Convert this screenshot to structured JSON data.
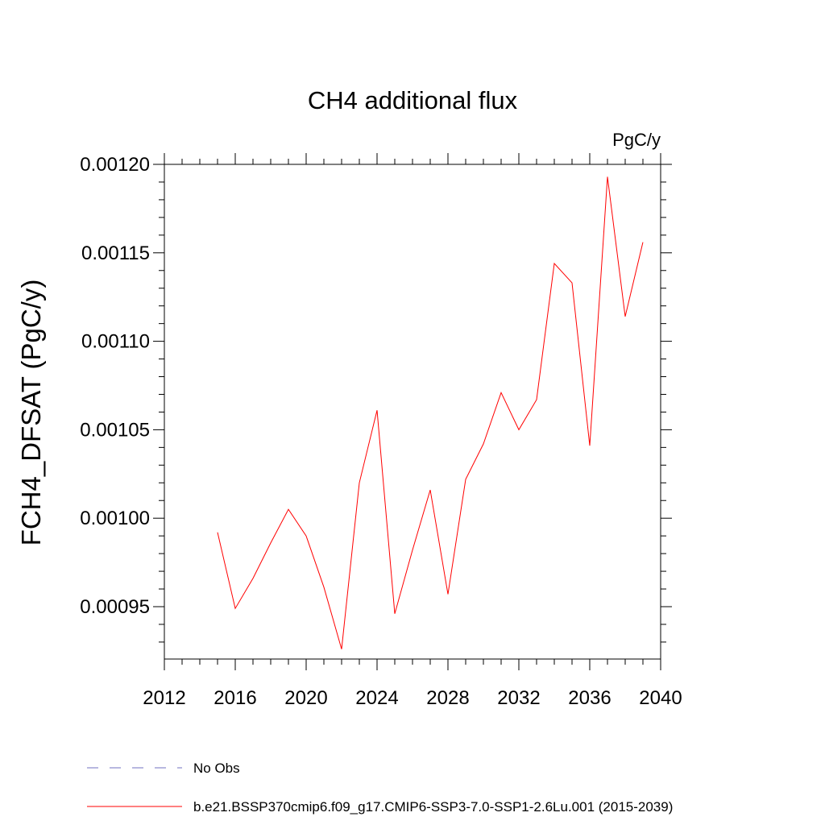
{
  "chart_data": {
    "type": "line",
    "title": "CH4 additional flux",
    "units": "PgC/y",
    "xlabel": "",
    "ylabel": "FCH4_DFSAT  (PgC/y)",
    "xlim": [
      2012,
      2040
    ],
    "ylim": [
      0.0009204,
      0.0012
    ],
    "x_ticks": [
      2012,
      2016,
      2020,
      2024,
      2028,
      2032,
      2036,
      2040
    ],
    "x_tick_labels": [
      "2012",
      "2016",
      "2020",
      "2024",
      "2028",
      "2032",
      "2036",
      "2040"
    ],
    "y_ticks": [
      0.00095,
      0.001,
      0.00105,
      0.0011,
      0.00115,
      0.0012
    ],
    "y_tick_labels": [
      "0.00095",
      "0.00100",
      "0.00105",
      "0.00110",
      "0.00115",
      "0.00120"
    ],
    "grid": false,
    "legend_position": "bottom",
    "series": [
      {
        "name": "b.e21.BSSP370cmip6.f09_g17.CMIP6-SSP3-7.0-SSP1-2.6Lu.001 (2015-2039)",
        "color": "#ff0000",
        "style": "solid",
        "x": [
          2015,
          2016,
          2017,
          2018,
          2019,
          2020,
          2021,
          2022,
          2023,
          2024,
          2025,
          2026,
          2027,
          2028,
          2029,
          2030,
          2031,
          2032,
          2033,
          2034,
          2035,
          2036,
          2037,
          2038,
          2039
        ],
        "y": [
          0.000992,
          0.000949,
          0.000966,
          0.000986,
          0.001005,
          0.00099,
          0.000961,
          0.000926,
          0.00102,
          0.001061,
          0.000946,
          0.000982,
          0.001016,
          0.000957,
          0.001022,
          0.001042,
          0.001071,
          0.00105,
          0.001067,
          0.001144,
          0.001133,
          0.001041,
          0.001193,
          0.001114,
          0.001156
        ]
      }
    ],
    "legend": [
      {
        "label": "No Obs",
        "color": "#7070c0",
        "style": "dashed"
      },
      {
        "label": "b.e21.BSSP370cmip6.f09_g17.CMIP6-SSP3-7.0-SSP1-2.6Lu.001 (2015-2039)",
        "color": "#ff0000",
        "style": "solid"
      }
    ]
  }
}
